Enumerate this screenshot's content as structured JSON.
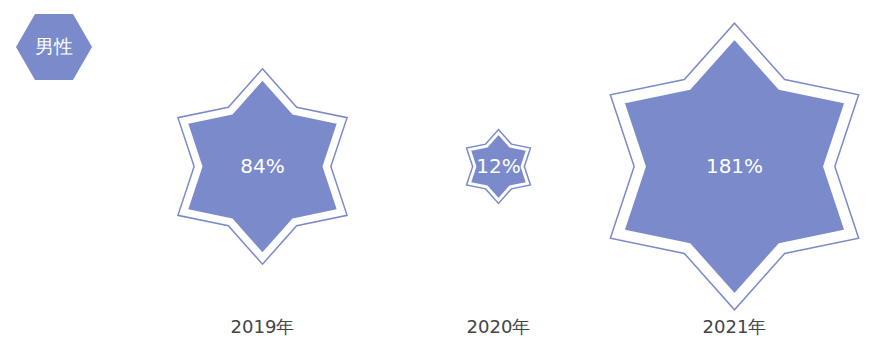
{
  "chart_data": {
    "type": "bubble",
    "title": "男性",
    "categories": [
      "2019年",
      "2020年",
      "2021年"
    ],
    "values": [
      84,
      12,
      181
    ],
    "value_labels": [
      "84%",
      "12%",
      "181%"
    ],
    "color": "#7b8acb",
    "data_labels": true,
    "tick_labels": "x"
  }
}
